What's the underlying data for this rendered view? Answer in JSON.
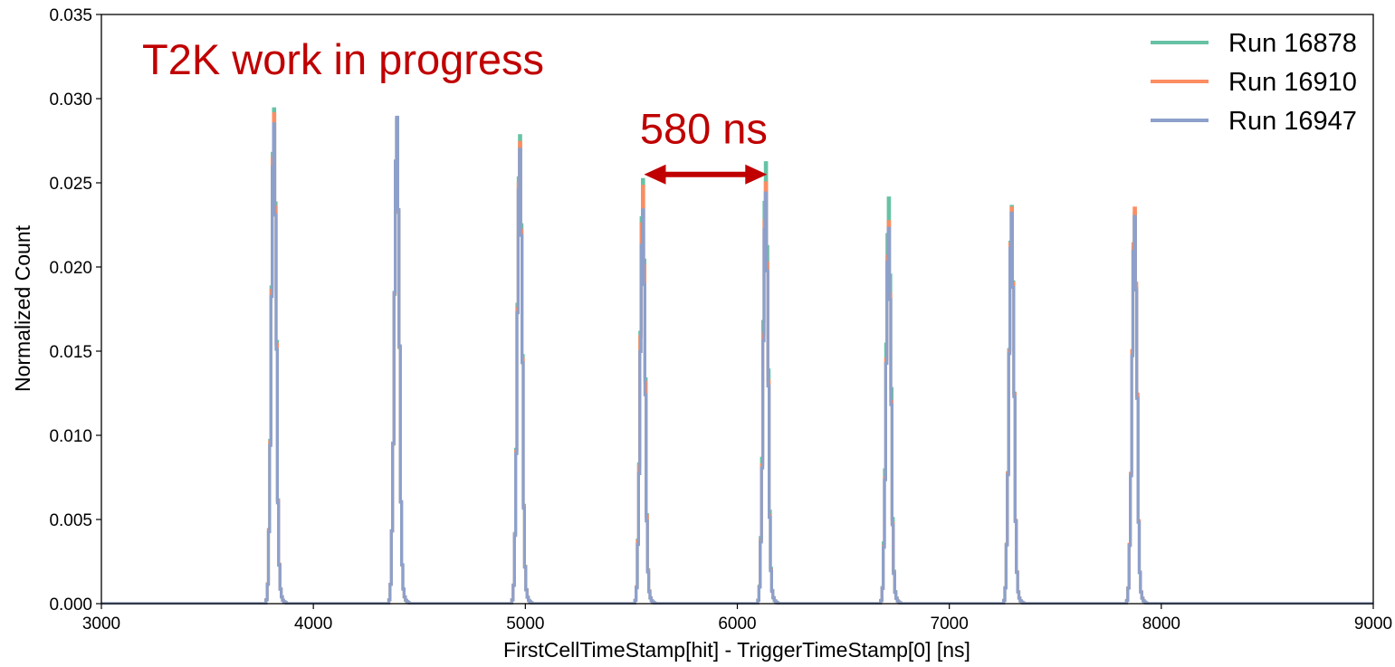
{
  "chart_data": {
    "type": "line",
    "annotation_text": "T2K work in progress",
    "annotation_color": "#c00000",
    "spacing_label": "580 ns",
    "spacing_arrow": {
      "x_start": 5560,
      "x_end": 6140,
      "y": 0.0255
    },
    "xlabel": "FirstCellTimeStamp[hit] - TriggerTimeStamp[0] [ns]",
    "ylabel": "Normalized Count",
    "xlim": [
      3000,
      9000
    ],
    "ylim": [
      0,
      0.035
    ],
    "xticks": [
      "3000",
      "4000",
      "5000",
      "6000",
      "7000",
      "8000",
      "9000"
    ],
    "yticks": [
      "0.000",
      "0.005",
      "0.010",
      "0.015",
      "0.020",
      "0.025",
      "0.030",
      "0.035"
    ],
    "grid": false,
    "legend_position": "top-right",
    "series": [
      {
        "name": "Run 16878",
        "color": "#66c2a5",
        "peak_centers": [
          3810,
          4390,
          4970,
          5550,
          6130,
          6710,
          7290,
          7870
        ],
        "peak_heights": [
          0.0294,
          0.0287,
          0.0278,
          0.0252,
          0.0262,
          0.0241,
          0.0236,
          0.0232
        ]
      },
      {
        "name": "Run 16910",
        "color": "#fc8d62",
        "peak_centers": [
          3810,
          4390,
          4970,
          5550,
          6130,
          6710,
          7290,
          7870
        ],
        "peak_heights": [
          0.0291,
          0.0288,
          0.0274,
          0.0248,
          0.025,
          0.0227,
          0.0235,
          0.0235
        ]
      },
      {
        "name": "Run 16947",
        "color": "#8da0cb",
        "peak_centers": [
          3810,
          4390,
          4970,
          5550,
          6130,
          6710,
          7290,
          7870
        ],
        "peak_heights": [
          0.0285,
          0.0289,
          0.027,
          0.0234,
          0.0244,
          0.0223,
          0.0232,
          0.023
        ]
      }
    ]
  }
}
